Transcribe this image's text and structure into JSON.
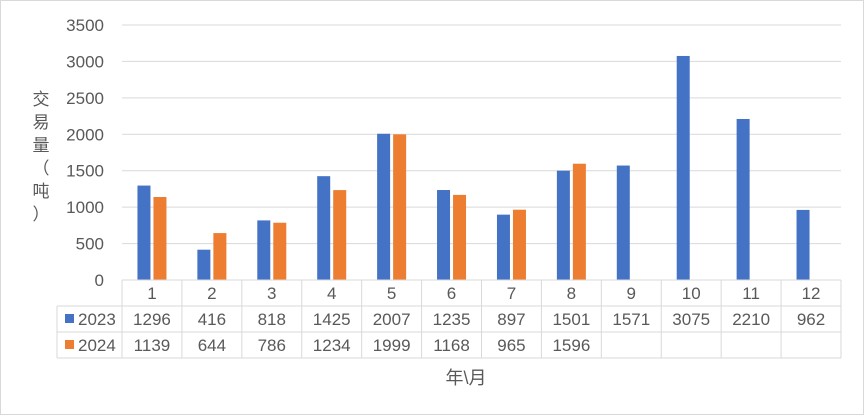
{
  "chart_data": {
    "type": "bar",
    "title": "",
    "xlabel": "年\\月",
    "ylabel": "交易量（吨）",
    "ylim": [
      0,
      3500
    ],
    "yticks": [
      0,
      500,
      1000,
      1500,
      2000,
      2500,
      3000,
      3500
    ],
    "grid": true,
    "legend": "data-table",
    "categories": [
      "1",
      "2",
      "3",
      "4",
      "5",
      "6",
      "7",
      "8",
      "9",
      "10",
      "11",
      "12"
    ],
    "series": [
      {
        "name": "2023",
        "color": "#4472c4",
        "values": [
          1296,
          416,
          818,
          1425,
          2007,
          1235,
          897,
          1501,
          1571,
          3075,
          2210,
          962
        ]
      },
      {
        "name": "2024",
        "color": "#ed7d31",
        "values": [
          1139,
          644,
          786,
          1234,
          1999,
          1168,
          965,
          1596,
          null,
          null,
          null,
          null
        ]
      }
    ]
  }
}
